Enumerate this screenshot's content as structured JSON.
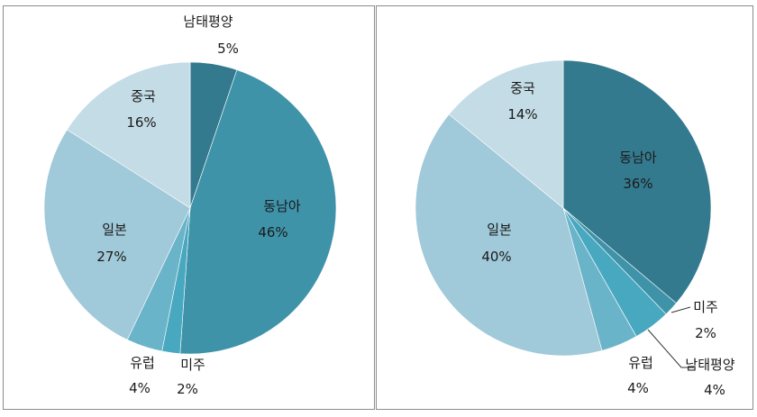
{
  "chart_data": [
    {
      "type": "pie",
      "slices": [
        {
          "label": "남태평양",
          "value_label": "5%",
          "value": 5.2,
          "color": "#347a8f"
        },
        {
          "label": "동남아",
          "value_label": "46%",
          "value": 46,
          "color": "#3f93a9"
        },
        {
          "label": "미주",
          "value_label": "2%",
          "value": 2,
          "color": "#48a8c0"
        },
        {
          "label": "유럽",
          "value_label": "4%",
          "value": 4,
          "color": "#6ab4c9"
        },
        {
          "label": "일본",
          "value_label": "27%",
          "value": 27,
          "color": "#a0c9d9"
        },
        {
          "label": "중국",
          "value_label": "16%",
          "value": 16,
          "color": "#c3dce5"
        }
      ]
    },
    {
      "type": "pie",
      "slices": [
        {
          "label": "동남아",
          "value_label": "36%",
          "value": 36,
          "color": "#347a8f"
        },
        {
          "label": "미주",
          "value_label": "2%",
          "value": 1.6,
          "color": "#3f93a9"
        },
        {
          "label": "남태평양",
          "value_label": "4%",
          "value": 4,
          "color": "#48a8c0"
        },
        {
          "label": "유럽",
          "value_label": "4%",
          "value": 4,
          "color": "#6ab4c9"
        },
        {
          "label": "일본",
          "value_label": "40%",
          "value": 40,
          "color": "#a0c9d9"
        },
        {
          "label": "중국",
          "value_label": "14%",
          "value": 14,
          "color": "#c3dce5"
        }
      ]
    }
  ]
}
